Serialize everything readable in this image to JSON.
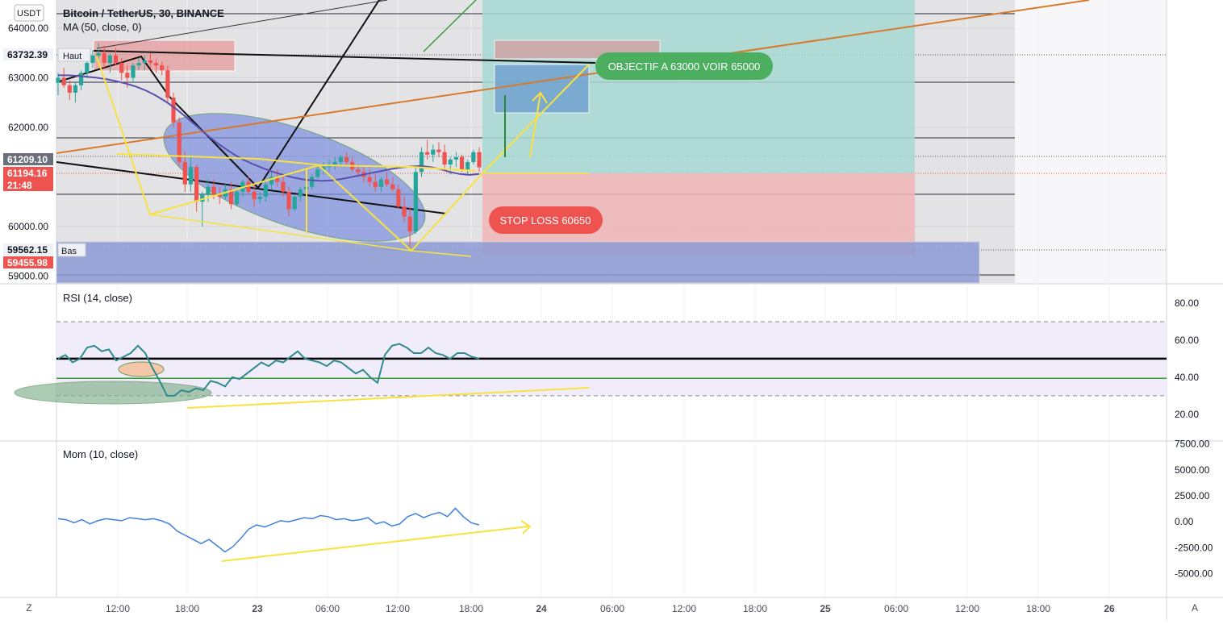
{
  "header": {
    "currency_badge": "USDT",
    "symbol_title": "Bitcoin / TetherUS, 30, BINANCE",
    "ma_label": "MA (50, close, 0)",
    "rsi_label": "RSI (14, close)",
    "mom_label": "Mom (10, close)"
  },
  "footer": {
    "left_button": "Z",
    "right_button": "A"
  },
  "annotations": {
    "high_label": "Haut",
    "low_label": "Bas",
    "target_callout": "OBJECTIF A 63000 VOIR 65000",
    "stop_callout": "STOP LOSS 60650"
  },
  "price_axis": {
    "high_badge": "63732.39",
    "last_badge": "61209.10",
    "current_badge": "61194.16",
    "countdown_badge": "21:48",
    "low_badge": "59562.15",
    "low2_badge": "59455.98"
  },
  "colors": {
    "up": "#26a69a",
    "down": "#ef5350",
    "ma": "#5b4fae",
    "rsi": "#2f8a8f",
    "mom": "#3f7fe0",
    "yellow": "#f7e240",
    "orange": "#d87a2c"
  },
  "chart_data": [
    {
      "type": "candlestick",
      "title": "Bitcoin / TetherUS, 30, BINANCE",
      "x_ticks": [
        "12:00",
        "18:00",
        "23",
        "06:00",
        "12:00",
        "18:00",
        "24",
        "06:00",
        "12:00",
        "18:00",
        "25",
        "06:00",
        "12:00",
        "18:00",
        "26"
      ],
      "y_ticks": [
        "64000.00",
        "63000.00",
        "62000.00",
        "60000.00",
        "59000.00"
      ],
      "y_tick_values": [
        64000,
        63000,
        62000,
        60000,
        59000
      ],
      "ylim": [
        58860,
        64570
      ],
      "ohlc": [
        [
          62900,
          63100,
          62650,
          63000
        ],
        [
          63000,
          63200,
          62800,
          62850
        ],
        [
          62850,
          62950,
          62550,
          62700
        ],
        [
          62700,
          62900,
          62500,
          62850
        ],
        [
          62850,
          63150,
          62750,
          63100
        ],
        [
          63100,
          63400,
          63000,
          63300
        ],
        [
          63300,
          63550,
          63200,
          63450
        ],
        [
          63450,
          63700,
          63350,
          63500
        ],
        [
          63500,
          63650,
          63200,
          63300
        ],
        [
          63300,
          63500,
          63100,
          63450
        ],
        [
          63450,
          63600,
          63250,
          63300
        ],
        [
          63300,
          63400,
          62950,
          63100
        ],
        [
          63100,
          63250,
          62800,
          63000
        ],
        [
          63000,
          63300,
          62900,
          63250
        ],
        [
          63250,
          63400,
          63150,
          63300
        ],
        [
          63300,
          63450,
          63150,
          63350
        ],
        [
          63350,
          63500,
          63200,
          63300
        ],
        [
          63300,
          63380,
          63100,
          63250
        ],
        [
          63250,
          63320,
          63050,
          63150
        ],
        [
          63150,
          63250,
          62500,
          62600
        ],
        [
          62600,
          62700,
          62000,
          62100
        ],
        [
          62100,
          62200,
          61200,
          61300
        ],
        [
          61300,
          61500,
          60700,
          60850
        ],
        [
          60850,
          61400,
          60700,
          61200
        ],
        [
          61200,
          61250,
          60300,
          60500
        ],
        [
          60500,
          60700,
          60000,
          60650
        ],
        [
          60650,
          60950,
          60500,
          60800
        ],
        [
          60800,
          60950,
          60550,
          60650
        ],
        [
          60650,
          60800,
          60450,
          60600
        ],
        [
          60600,
          60850,
          60550,
          60750
        ],
        [
          60750,
          60900,
          60350,
          60450
        ],
        [
          60450,
          60750,
          60400,
          60700
        ],
        [
          60700,
          60950,
          60600,
          60900
        ],
        [
          60900,
          61000,
          60650,
          60700
        ],
        [
          60700,
          60850,
          60400,
          60550
        ],
        [
          60550,
          60700,
          60450,
          60600
        ],
        [
          60600,
          60900,
          60500,
          60850
        ],
        [
          60850,
          61100,
          60750,
          61000
        ],
        [
          61000,
          61150,
          60800,
          60900
        ],
        [
          60900,
          61050,
          60600,
          60700
        ],
        [
          60700,
          60800,
          60200,
          60350
        ],
        [
          60350,
          60650,
          60300,
          60600
        ],
        [
          60600,
          60800,
          60500,
          60750
        ],
        [
          60750,
          60900,
          60650,
          60800
        ],
        [
          60800,
          61050,
          60750,
          61000
        ],
        [
          61000,
          61200,
          60950,
          61150
        ],
        [
          61150,
          61300,
          61050,
          61200
        ],
        [
          61200,
          61350,
          61100,
          61250
        ],
        [
          61250,
          61400,
          61150,
          61300
        ],
        [
          61300,
          61450,
          61200,
          61400
        ],
        [
          61400,
          61500,
          61250,
          61300
        ],
        [
          61300,
          61400,
          61100,
          61150
        ],
        [
          61150,
          61250,
          61000,
          61100
        ],
        [
          61100,
          61200,
          60900,
          61000
        ],
        [
          61000,
          61150,
          60800,
          60900
        ],
        [
          60900,
          61050,
          60700,
          60800
        ],
        [
          60800,
          61000,
          60700,
          60950
        ],
        [
          60950,
          61100,
          60800,
          60850
        ],
        [
          60850,
          61000,
          60700,
          60750
        ],
        [
          60750,
          60850,
          60350,
          60400
        ],
        [
          60400,
          60600,
          60100,
          60200
        ],
        [
          60200,
          60400,
          59550,
          59900
        ],
        [
          59900,
          61200,
          59850,
          61100
        ],
        [
          61100,
          61600,
          61000,
          61500
        ],
        [
          61500,
          61750,
          61350,
          61450
        ],
        [
          61450,
          61650,
          61300,
          61550
        ],
        [
          61550,
          61700,
          61400,
          61500
        ],
        [
          61500,
          61650,
          61150,
          61250
        ],
        [
          61250,
          61400,
          61050,
          61350
        ],
        [
          61350,
          61500,
          61200,
          61400
        ],
        [
          61400,
          61450,
          61100,
          61150
        ],
        [
          61150,
          61350,
          61050,
          61300
        ],
        [
          61300,
          61550,
          61250,
          61500
        ],
        [
          61500,
          61600,
          61100,
          61194
        ]
      ],
      "ma_50": [
        63050,
        63050,
        63040,
        63020,
        63000,
        62970,
        62930,
        62880,
        62820,
        62740,
        62640,
        62520,
        62380,
        62220,
        62050,
        61880,
        61720,
        61580,
        61450,
        61340,
        61250,
        61170,
        61100,
        61040,
        60990,
        60950,
        60930,
        60920,
        60930,
        60960,
        61000,
        61040,
        61080,
        61120,
        61160,
        61190,
        61210,
        61220,
        61200,
        61160,
        61100,
        61060,
        61040,
        61060
      ],
      "price_levels": [
        63732.39,
        63000,
        62000,
        61209.1,
        61194.16,
        60800,
        59562.15,
        59455.98
      ]
    },
    {
      "type": "line",
      "title": "RSI (14, close)",
      "y_ticks": [
        "80.00",
        "60.00",
        "40.00",
        "20.00"
      ],
      "y_tick_values": [
        80,
        60,
        40,
        20
      ],
      "ylim": [
        6,
        90
      ],
      "bands": [
        70,
        30
      ],
      "levels": [
        50,
        39.4
      ],
      "values": [
        50,
        52,
        48,
        50,
        56,
        57,
        54,
        55,
        49,
        51,
        53,
        57,
        53,
        45,
        38,
        30,
        30,
        33,
        32,
        34,
        33,
        38,
        37,
        35,
        40,
        39,
        42,
        45,
        48,
        46,
        49,
        48,
        51,
        54,
        50,
        49,
        48,
        46,
        49,
        48,
        45,
        42,
        44,
        40,
        37,
        52,
        57,
        58,
        56,
        53,
        53,
        56,
        53,
        52,
        50,
        53,
        53,
        51,
        50
      ]
    },
    {
      "type": "line",
      "title": "Mom (10, close)",
      "y_ticks": [
        "7500.00",
        "5000.00",
        "2500.00",
        "0.00",
        "-2500.00",
        "-5000.00"
      ],
      "y_tick_values": [
        7500,
        5000,
        2500,
        0,
        -2500,
        -5000
      ],
      "ylim": [
        -7200,
        7700
      ],
      "values": [
        300,
        200,
        -100,
        200,
        -200,
        100,
        300,
        200,
        100,
        400,
        300,
        200,
        300,
        100,
        -200,
        -900,
        -1300,
        -1700,
        -2100,
        -1700,
        -2300,
        -2900,
        -2400,
        -1600,
        -700,
        -300,
        -500,
        -200,
        100,
        0,
        200,
        400,
        300,
        600,
        500,
        200,
        300,
        100,
        200,
        400,
        -200,
        0,
        -400,
        -200,
        500,
        800,
        400,
        700,
        900,
        500,
        1300,
        500,
        -100,
        -300
      ]
    }
  ]
}
